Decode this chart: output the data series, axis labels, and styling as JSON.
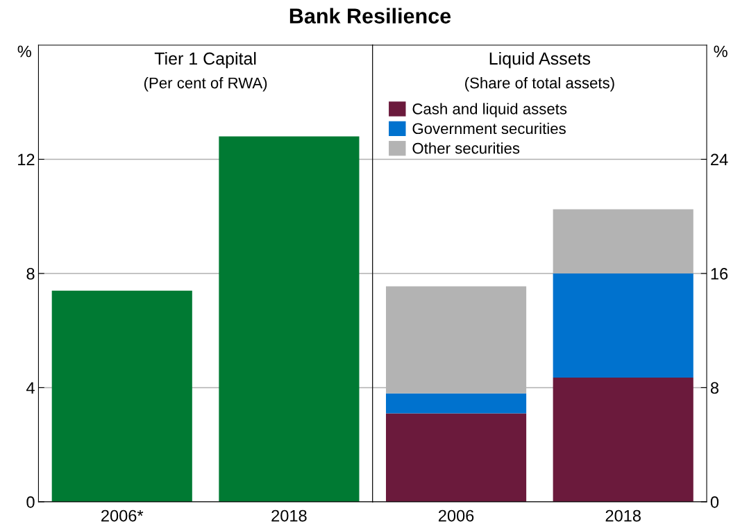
{
  "chart_data": [
    {
      "type": "bar",
      "title": "Tier 1 Capital",
      "subtitle": "(Per cent of RWA)",
      "ylabel": "%",
      "annotations": [
        "Bank Resilience"
      ],
      "categories": [
        "2006*",
        "2018"
      ],
      "series": [
        {
          "color": "#007a33",
          "values": [
            7.4,
            12.8
          ]
        }
      ],
      "ylim": [
        0,
        16
      ],
      "yticks": [
        0,
        4,
        8,
        12
      ],
      "grid": "y"
    },
    {
      "type": "bar",
      "title": "Liquid Assets",
      "subtitle": "(Share of total assets)",
      "ylabel": "%",
      "stacked": true,
      "legend": "top left",
      "categories": [
        "2006",
        "2018"
      ],
      "series": [
        {
          "name": "Cash and liquid assets",
          "color": "#6b1a3c",
          "values": [
            6.2,
            8.7
          ]
        },
        {
          "name": "Government securities",
          "color": "#0072ce",
          "values": [
            1.4,
            7.3
          ]
        },
        {
          "name": "Other securities",
          "color": "#b3b3b3",
          "values": [
            7.5,
            4.5
          ]
        }
      ],
      "ylim": [
        0,
        32
      ],
      "yticks": [
        0,
        8,
        16,
        24
      ],
      "grid": "y"
    }
  ]
}
